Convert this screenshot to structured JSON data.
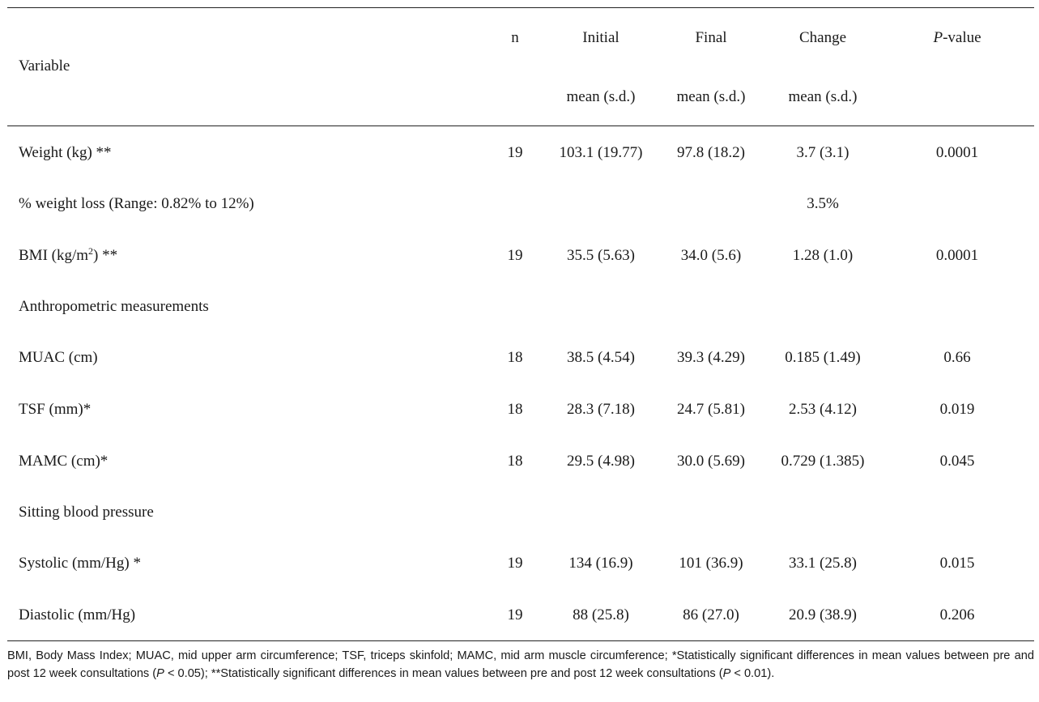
{
  "header": {
    "variable": "Variable",
    "n": "n",
    "initial_top": "Initial",
    "initial_bottom": "mean (s.d.)",
    "final_top": "Final",
    "final_bottom": "mean (s.d.)",
    "change_top": "Change",
    "change_bottom": "mean (s.d.)",
    "pvalue_italic": "P",
    "pvalue_rest": "-value"
  },
  "rows": [
    {
      "variable": "Weight (kg) **",
      "n": "19",
      "initial": "103.1 (19.77)",
      "final": "97.8 (18.2)",
      "change": "3.7 (3.1)",
      "p": "0.0001"
    },
    {
      "variable": "% weight loss (Range: 0.82% to 12%)",
      "n": "",
      "initial": "",
      "final": "",
      "change": "3.5%",
      "p": ""
    },
    {
      "variable_pre": "BMI (kg/m",
      "variable_sup": "2",
      "variable_post": ") **",
      "n": "19",
      "initial": "35.5 (5.63)",
      "final": "34.0 (5.6)",
      "change": "1.28 (1.0)",
      "p": "0.0001"
    },
    {
      "variable": "Anthropometric measurements",
      "n": "",
      "initial": "",
      "final": "",
      "change": "",
      "p": ""
    },
    {
      "variable": "MUAC (cm)",
      "n": "18",
      "initial": "38.5 (4.54)",
      "final": "39.3 (4.29)",
      "change": "0.185 (1.49)",
      "p": "0.66"
    },
    {
      "variable": "TSF (mm)*",
      "n": "18",
      "initial": "28.3 (7.18)",
      "final": "24.7 (5.81)",
      "change": "2.53 (4.12)",
      "p": "0.019"
    },
    {
      "variable": "MAMC (cm)*",
      "n": "18",
      "initial": "29.5 (4.98)",
      "final": "30.0 (5.69)",
      "change": "0.729 (1.385)",
      "p": "0.045"
    },
    {
      "variable": "Sitting blood pressure",
      "n": "",
      "initial": "",
      "final": "",
      "change": "",
      "p": ""
    },
    {
      "variable": "Systolic (mm/Hg) *",
      "n": "19",
      "initial": "134 (16.9)",
      "final": "101 (36.9)",
      "change": "33.1 (25.8)",
      "p": "0.015"
    },
    {
      "variable": "Diastolic (mm/Hg)",
      "n": "19",
      "initial": "88 (25.8)",
      "final": "86 (27.0)",
      "change": "20.9 (38.9)",
      "p": "0.206"
    }
  ],
  "footnote": {
    "part1": "BMI, Body Mass Index; MUAC, mid upper arm circumference; TSF, triceps skinfold; MAMC, mid arm muscle circumference; *Statistically significant differences in mean values between pre and post 12 week consultations (",
    "p1_italic": "P",
    "part2": " < 0.05); **Statistically significant differences in mean values between pre and post 12 week consultations (",
    "p2_italic": "P",
    "part3": " < 0.01)."
  }
}
